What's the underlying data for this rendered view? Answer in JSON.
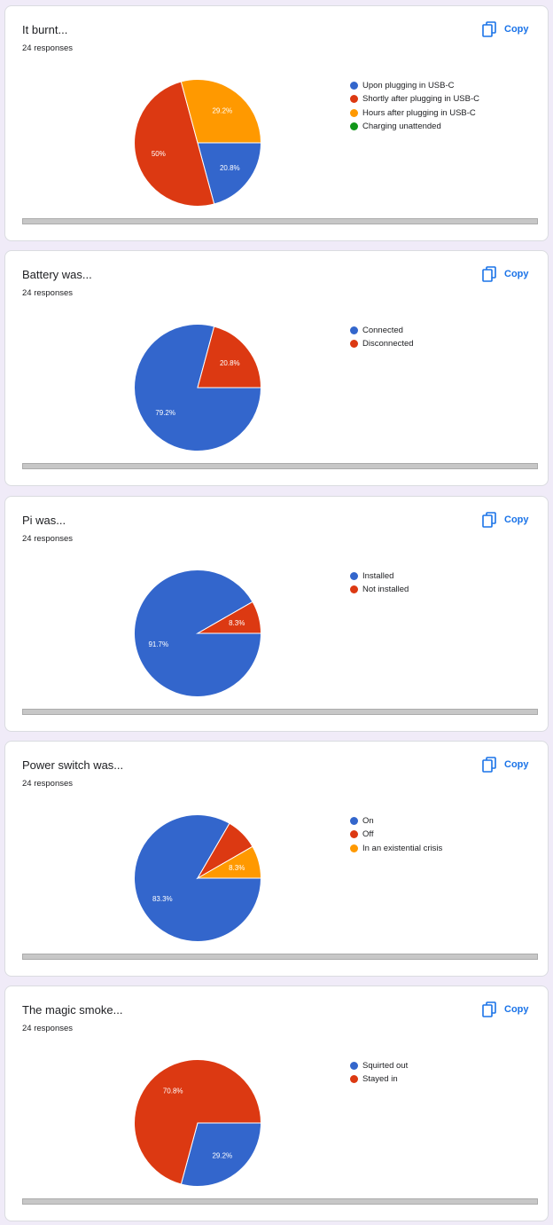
{
  "copy_label": "Copy",
  "copy_icon": "copy-icon",
  "accent_color": "#1a73e8",
  "chart_data": [
    {
      "type": "pie",
      "title": "It burnt...",
      "subtitle": "24 responses",
      "legend_position": "right",
      "categories": [
        "Upon plugging in USB-C",
        "Shortly after plugging in USB-C",
        "Hours after plugging in USB-C",
        "Charging unattended"
      ],
      "values": [
        20.8,
        50,
        29.2,
        0
      ],
      "labels": [
        "20.8%",
        "50%",
        "29.2%",
        ""
      ],
      "colors": [
        "#3366cc",
        "#dc3912",
        "#ff9900",
        "#109618"
      ]
    },
    {
      "type": "pie",
      "title": "Battery was...",
      "subtitle": "24 responses",
      "legend_position": "right",
      "categories": [
        "Connected",
        "Disconnected"
      ],
      "values": [
        79.2,
        20.8
      ],
      "labels": [
        "79.2%",
        "20.8%"
      ],
      "colors": [
        "#3366cc",
        "#dc3912"
      ]
    },
    {
      "type": "pie",
      "title": "Pi was...",
      "subtitle": "24 responses",
      "legend_position": "right",
      "categories": [
        "Installed",
        "Not installed"
      ],
      "values": [
        91.7,
        8.3
      ],
      "labels": [
        "91.7%",
        "8.3%"
      ],
      "colors": [
        "#3366cc",
        "#dc3912"
      ]
    },
    {
      "type": "pie",
      "title": "Power switch was...",
      "subtitle": "24 responses",
      "legend_position": "right",
      "categories": [
        "On",
        "Off",
        "In an existential crisis"
      ],
      "values": [
        83.3,
        8.3,
        8.3
      ],
      "labels": [
        "83.3%",
        "",
        "8.3%"
      ],
      "colors": [
        "#3366cc",
        "#dc3912",
        "#ff9900"
      ]
    },
    {
      "type": "pie",
      "title": "The magic smoke...",
      "subtitle": "24 responses",
      "legend_position": "right",
      "categories": [
        "Squirted out",
        "Stayed in"
      ],
      "values": [
        29.2,
        70.8
      ],
      "labels": [
        "29.2%",
        "70.8%"
      ],
      "colors": [
        "#3366cc",
        "#dc3912"
      ]
    }
  ]
}
